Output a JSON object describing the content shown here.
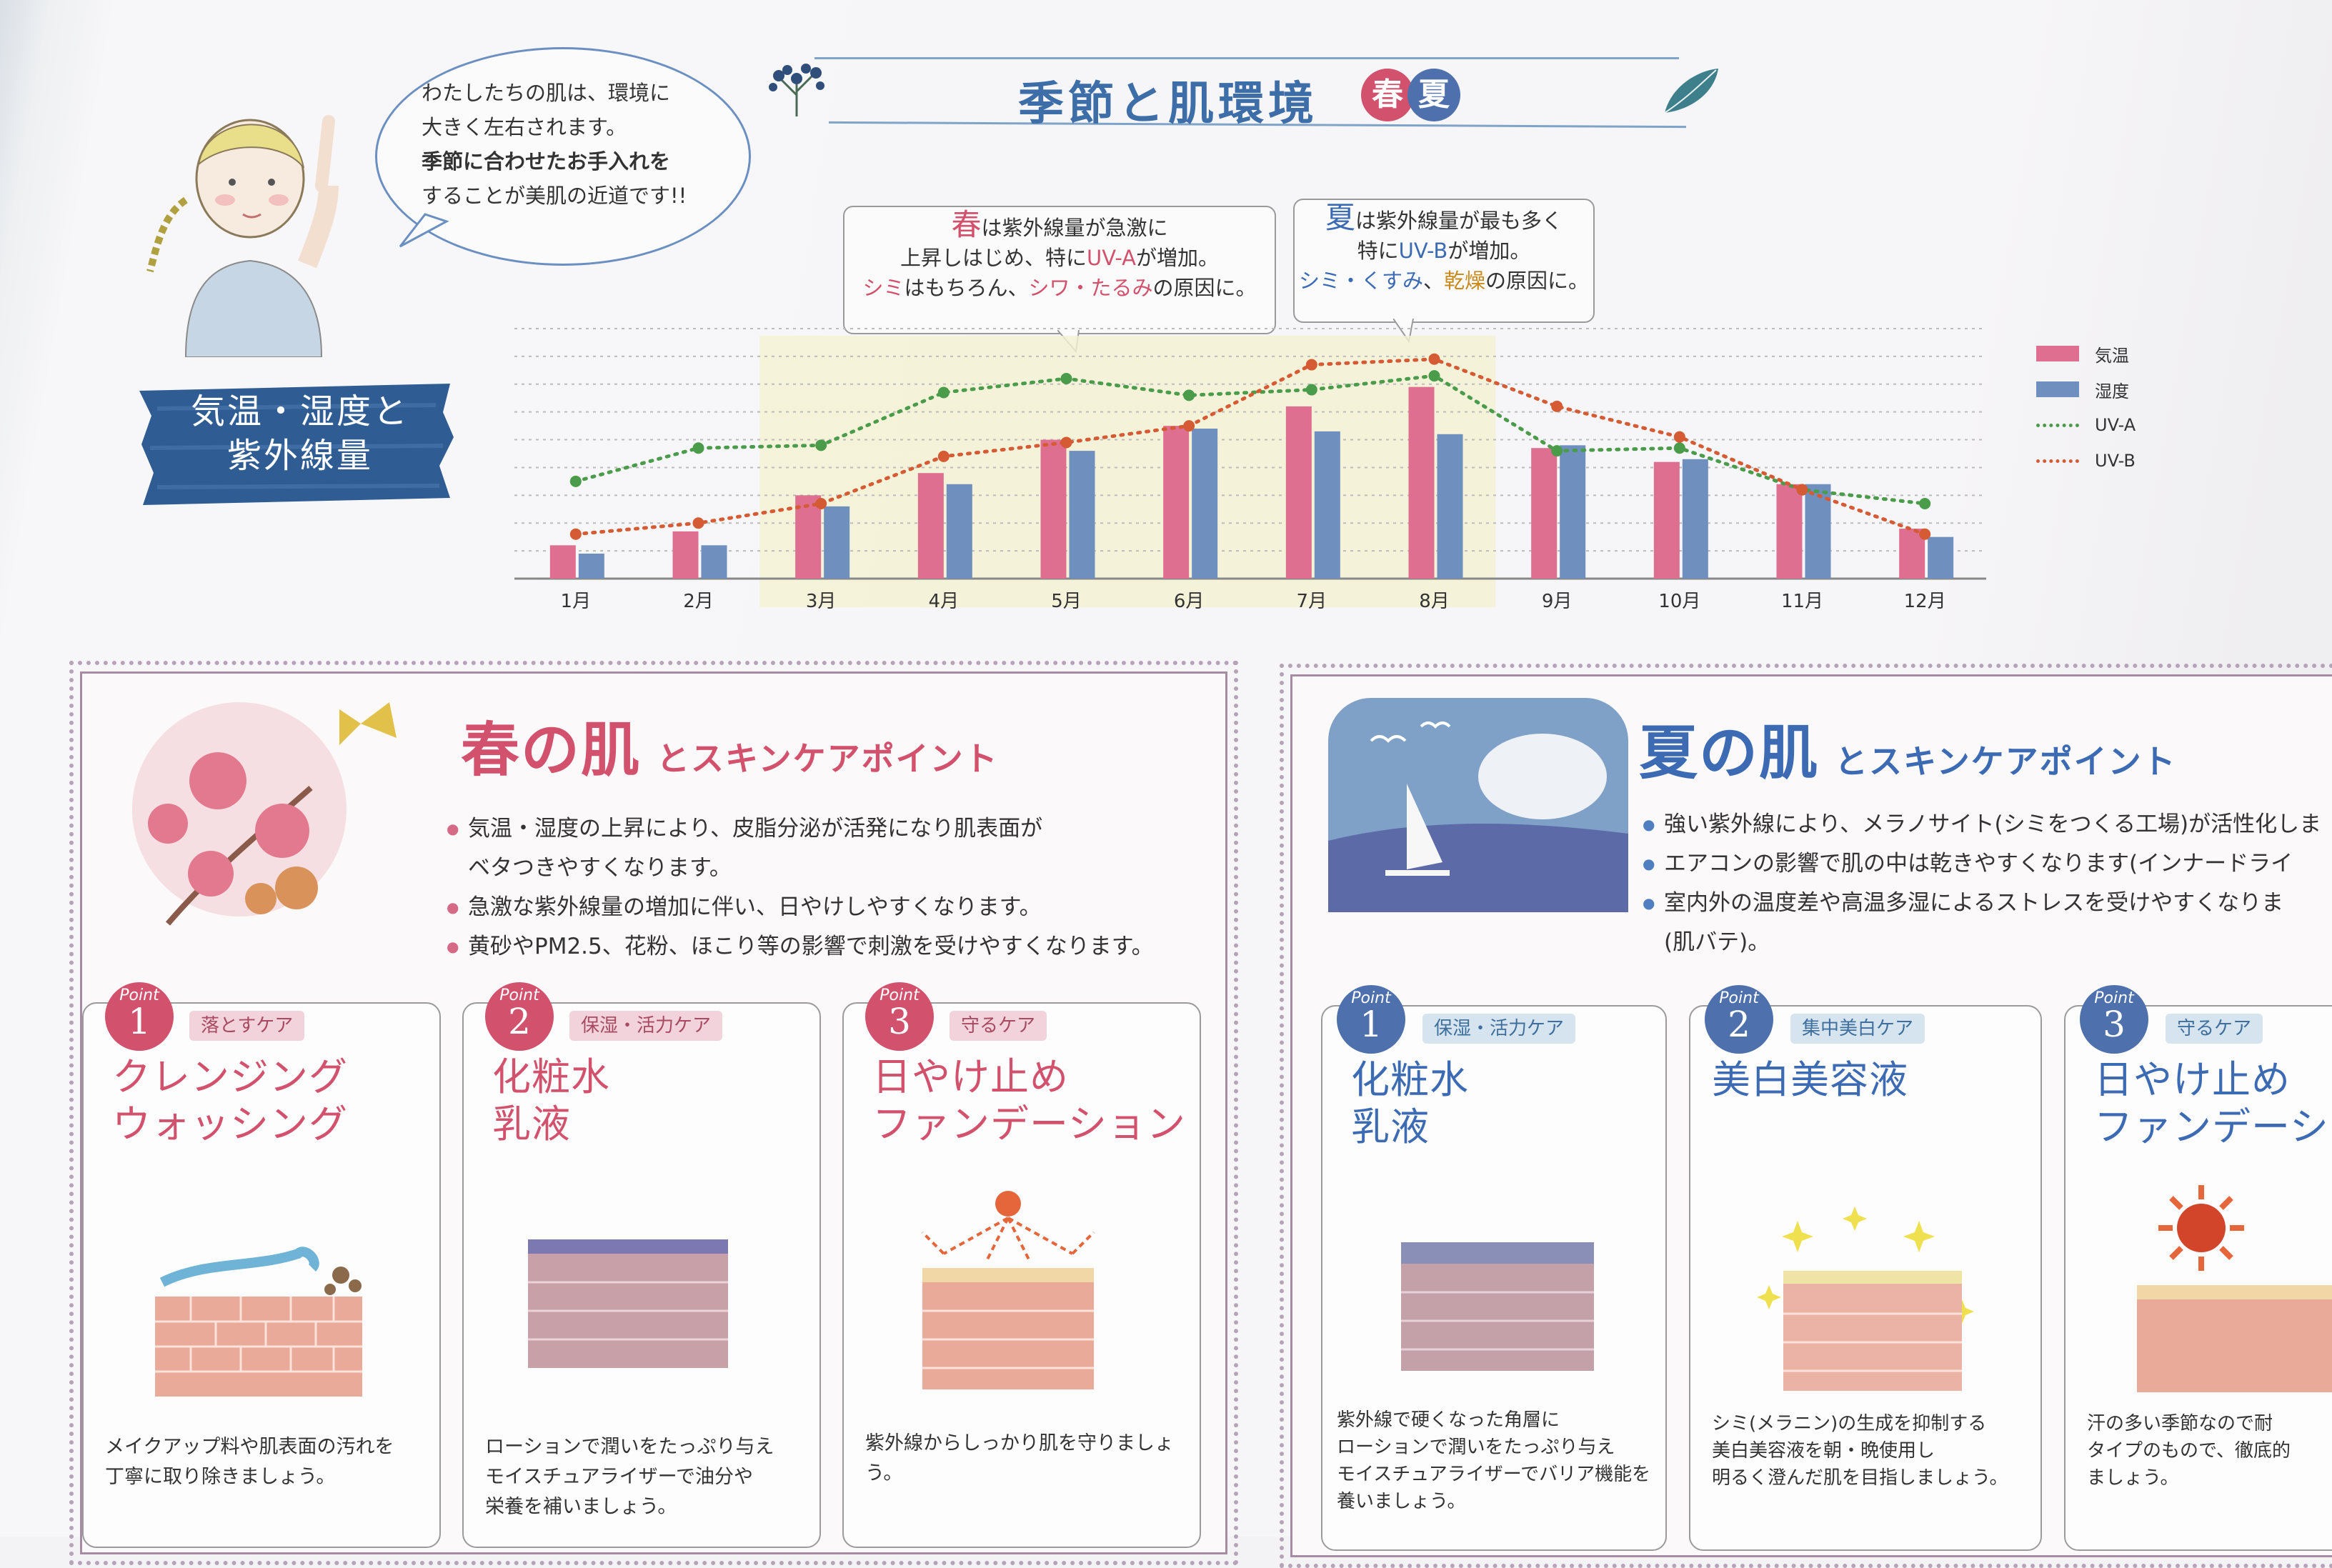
{
  "header": {
    "title": "季節と肌環境",
    "badge_spring": "春",
    "badge_summer": "夏"
  },
  "bubble": {
    "line1": "わたしたちの肌は、環境に",
    "line2": "大きく左右されます。",
    "line3": "季節に合わせたお手入れを",
    "line4": "することが美肌の近道です!!"
  },
  "section_label": {
    "line1": "気温・湿度と",
    "line2": "紫外線量"
  },
  "callout_spring": {
    "season": "春",
    "l1": "は紫外線量が急激に",
    "l2a": "上昇しはじめ、特に",
    "l2b": "UV-A",
    "l2c": "が増加。",
    "l3a": "シミ",
    "l3b": "はもちろん、",
    "l3c": "シワ・たるみ",
    "l3d": "の原因に。"
  },
  "callout_summer": {
    "season": "夏",
    "l1": "は紫外線量が最も多く",
    "l2a": "特に",
    "l2b": "UV-B",
    "l2c": "が増加。",
    "l3a": "シミ・くすみ",
    "l3b": "、",
    "l3c": "乾燥",
    "l3d": "の原因に。"
  },
  "chart_data": {
    "type": "bar",
    "categories": [
      "1月",
      "2月",
      "3月",
      "4月",
      "5月",
      "6月",
      "7月",
      "8月",
      "9月",
      "10月",
      "11月",
      "12月"
    ],
    "series": [
      {
        "name": "気温",
        "kind": "bar",
        "color": "#de6f90",
        "values": [
          12,
          17,
          30,
          38,
          50,
          55,
          62,
          69,
          47,
          42,
          34,
          18
        ]
      },
      {
        "name": "湿度",
        "kind": "bar",
        "color": "#6f8fbf",
        "values": [
          9,
          12,
          26,
          34,
          46,
          54,
          53,
          52,
          48,
          43,
          34,
          15
        ]
      },
      {
        "name": "UV-A",
        "kind": "line",
        "color": "#4a9b4a",
        "values": [
          35,
          47,
          48,
          67,
          72,
          66,
          68,
          73,
          46,
          47,
          32,
          27
        ]
      },
      {
        "name": "UV-B",
        "kind": "line",
        "color": "#d55b34",
        "values": [
          16,
          20,
          27,
          44,
          49,
          55,
          77,
          79,
          62,
          51,
          32,
          16
        ]
      }
    ],
    "ylim": [
      0,
      90
    ],
    "grid": true,
    "legend": "right",
    "highlight_months": [
      "3月",
      "4月",
      "5月",
      "6月",
      "7月",
      "8月"
    ]
  },
  "spring_panel": {
    "title": "春の肌",
    "subtitle": "とスキンケアポイント",
    "bullets": [
      [
        "気温・湿度の上昇により、皮脂分泌が活発になり肌表面が",
        "ベタつきやすくなります。"
      ],
      [
        "急激な紫外線量の増加に伴い、日やけしやすくなります。"
      ],
      [
        "黄砂やPM2.5、花粉、ほこり等の影響で刺激を受けやすくなります。"
      ]
    ],
    "cards": [
      {
        "point": "Point",
        "num": "1",
        "tag": "落とすケア",
        "title1": "クレンジング",
        "title2": "ウォッシング",
        "desc1": "メイクアップ料や肌表面の汚れを",
        "desc2": "丁寧に取り除きましょう。",
        "desc3": ""
      },
      {
        "point": "Point",
        "num": "2",
        "tag": "保湿・活力ケア",
        "title1": "化粧水",
        "title2": "乳液",
        "desc1": "ローションで潤いをたっぷり与え",
        "desc2": "モイスチュアライザーで油分や",
        "desc3": "栄養を補いましょう。"
      },
      {
        "point": "Point",
        "num": "3",
        "tag": "守るケア",
        "title1": "日やけ止め",
        "title2": "ファンデーション",
        "desc1": "紫外線からしっかり肌を守りましょう。",
        "desc2": "",
        "desc3": ""
      }
    ]
  },
  "summer_panel": {
    "title": "夏の肌",
    "subtitle": "とスキンケアポイント",
    "bullets": [
      [
        "強い紫外線により、メラノサイト(シミをつくる工場)が活性化しま"
      ],
      [
        "エアコンの影響で肌の中は乾きやすくなります(インナードライ"
      ],
      [
        "室内外の温度差や高温多湿によるストレスを受けやすくなりま",
        "(肌バテ)。"
      ]
    ],
    "cards": [
      {
        "point": "Point",
        "num": "1",
        "tag": "保湿・活力ケア",
        "title1": "化粧水",
        "title2": "乳液",
        "desc1": "紫外線で硬くなった角層に",
        "desc2": "ローションで潤いをたっぷり与え",
        "desc3": "モイスチュアライザーでバリア機能を",
        "desc4": "養いましょう。"
      },
      {
        "point": "Point",
        "num": "2",
        "tag": "集中美白ケア",
        "title1": "美白美容液",
        "title2": "",
        "desc1": "シミ(メラニン)の生成を抑制する",
        "desc2": "美白美容液を朝・晩使用し",
        "desc3": "明るく澄んだ肌を目指しましょう。",
        "desc4": ""
      },
      {
        "point": "Point",
        "num": "3",
        "tag": "守るケア",
        "title1": "日やけ止め",
        "title2": "ファンデーシ",
        "desc1": "汗の多い季節なので耐",
        "desc2": "タイプのもので、徹底的",
        "desc3": "ましょう。",
        "desc4": ""
      }
    ]
  },
  "colors": {
    "spring": "#d2516c",
    "summer": "#3c6bb4",
    "title_blue": "#3d6ea7"
  }
}
